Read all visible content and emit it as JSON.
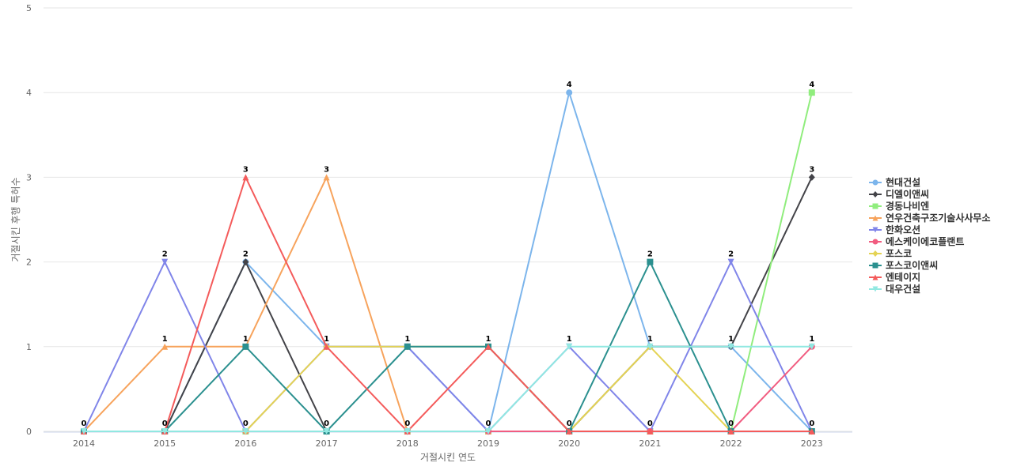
{
  "chart_data": {
    "type": "line",
    "title": "",
    "xlabel": "거절시킨 연도",
    "ylabel": "거절시킨 후행 특허수",
    "x": [
      "2014",
      "2015",
      "2016",
      "2017",
      "2018",
      "2019",
      "2020",
      "2021",
      "2022",
      "2023"
    ],
    "ylim": [
      0,
      5
    ],
    "yticks": [
      0,
      1,
      2,
      3,
      4,
      5
    ],
    "grid": true,
    "legend": "right",
    "series": [
      {
        "name": "현대건설",
        "color": "#7cb5ec",
        "marker": "circle",
        "values": [
          0,
          0,
          2,
          1,
          1,
          0,
          4,
          1,
          1,
          0
        ]
      },
      {
        "name": "디엘이앤씨",
        "color": "#434348",
        "marker": "diamond",
        "values": [
          0,
          0,
          2,
          0,
          0,
          0,
          0,
          1,
          1,
          3
        ]
      },
      {
        "name": "경동나비엔",
        "color": "#90ed7d",
        "marker": "square",
        "values": [
          0,
          0,
          0,
          0,
          0,
          0,
          0,
          0,
          0,
          4
        ]
      },
      {
        "name": "연우건축구조기술사사무소",
        "color": "#f7a35c",
        "marker": "triangle",
        "values": [
          0,
          1,
          1,
          3,
          0,
          0,
          0,
          0,
          0,
          0
        ]
      },
      {
        "name": "한화오션",
        "color": "#8085e9",
        "marker": "triangle-down",
        "values": [
          0,
          2,
          0,
          1,
          1,
          0,
          1,
          0,
          2,
          0
        ]
      },
      {
        "name": "에스케이에코플랜트",
        "color": "#f15c80",
        "marker": "circle",
        "values": [
          0,
          0,
          0,
          0,
          0,
          0,
          0,
          0,
          0,
          1
        ]
      },
      {
        "name": "포스코",
        "color": "#e4d354",
        "marker": "diamond",
        "values": [
          0,
          0,
          0,
          1,
          1,
          1,
          0,
          1,
          0,
          0
        ]
      },
      {
        "name": "포스코이앤씨",
        "color": "#2b908f",
        "marker": "square",
        "values": [
          0,
          0,
          1,
          0,
          1,
          1,
          0,
          2,
          0,
          0
        ]
      },
      {
        "name": "엔테이지",
        "color": "#f45b5b",
        "marker": "triangle",
        "values": [
          0,
          0,
          3,
          1,
          0,
          1,
          0,
          0,
          0,
          0
        ]
      },
      {
        "name": "대우건설",
        "color": "#91e8e1",
        "marker": "triangle-down",
        "values": [
          0,
          0,
          0,
          0,
          0,
          0,
          1,
          1,
          1,
          1
        ]
      }
    ],
    "data_labels": [
      {
        "x": "2014",
        "value": "0"
      },
      {
        "x": "2015",
        "value": "2"
      },
      {
        "x": "2015",
        "value": "1"
      },
      {
        "x": "2015",
        "value": "0"
      },
      {
        "x": "2016",
        "value": "3"
      },
      {
        "x": "2016",
        "value": "2"
      },
      {
        "x": "2016",
        "value": "1"
      },
      {
        "x": "2016",
        "value": "0"
      },
      {
        "x": "2017",
        "value": "3"
      },
      {
        "x": "2017",
        "value": "1"
      },
      {
        "x": "2017",
        "value": "0"
      },
      {
        "x": "2018",
        "value": "1"
      },
      {
        "x": "2018",
        "value": "0"
      },
      {
        "x": "2019",
        "value": "1"
      },
      {
        "x": "2019",
        "value": "0"
      },
      {
        "x": "2020",
        "value": "4"
      },
      {
        "x": "2020",
        "value": "1"
      },
      {
        "x": "2020",
        "value": "0"
      },
      {
        "x": "2021",
        "value": "2"
      },
      {
        "x": "2021",
        "value": "1"
      },
      {
        "x": "2021",
        "value": "0"
      },
      {
        "x": "2022",
        "value": "2"
      },
      {
        "x": "2022",
        "value": "1"
      },
      {
        "x": "2022",
        "value": "0"
      },
      {
        "x": "2023",
        "value": "4"
      },
      {
        "x": "2023",
        "value": "3"
      },
      {
        "x": "2023",
        "value": "1"
      },
      {
        "x": "2023",
        "value": "0"
      }
    ]
  }
}
